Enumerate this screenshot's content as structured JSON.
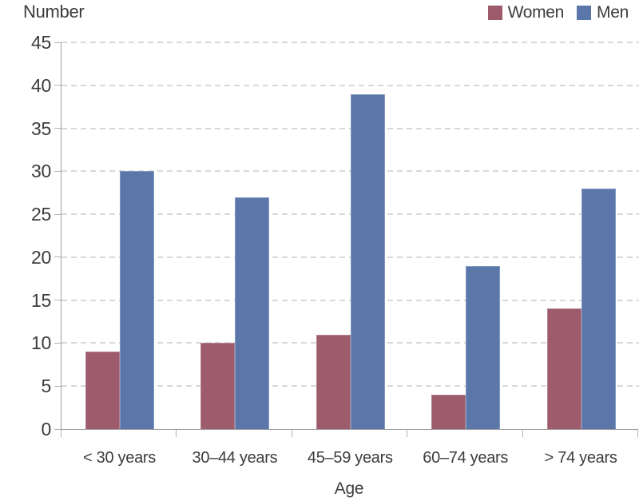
{
  "figure": {
    "background": "#ffffff"
  },
  "chart_data": {
    "type": "bar",
    "title": "",
    "ylabel": "Number",
    "xlabel": "Age",
    "categories": [
      "< 30 years",
      "30–44 years",
      "45–59 years",
      "60–74 years",
      "> 74 years"
    ],
    "series": [
      {
        "name": "Women",
        "color": "#9d5b6b",
        "edge_color": "#b08392",
        "values": [
          9,
          10,
          11,
          4,
          14
        ]
      },
      {
        "name": "Men",
        "color": "#5b77a9",
        "edge_color": "#8199c0",
        "values": [
          30,
          27,
          39,
          19,
          28
        ]
      }
    ],
    "ylim": [
      0,
      45
    ],
    "ytick_step": 5,
    "grid": "horizontal-dashed",
    "gridline_color": "#d8d8d8",
    "axis_color": "#9e9e9e",
    "tick_color": "#b3b3b3",
    "text_color": "#3c3c3c",
    "legend_position": "top-right"
  }
}
